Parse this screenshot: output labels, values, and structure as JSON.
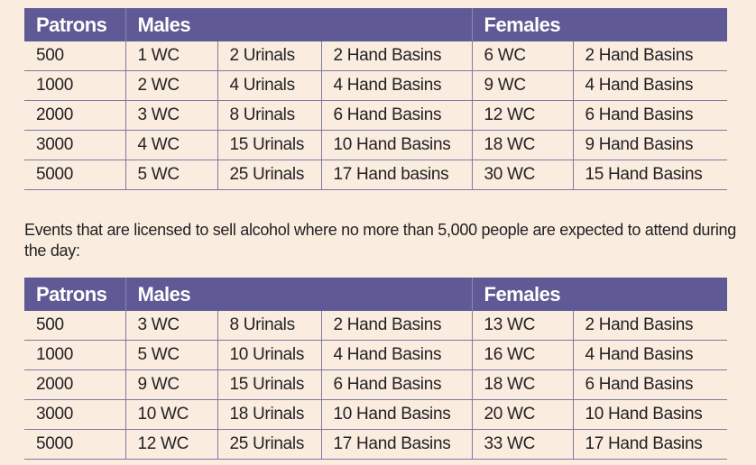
{
  "headers": {
    "patrons": "Patrons",
    "males": "Males",
    "females": "Females"
  },
  "table1": [
    [
      "500",
      "1 WC",
      "2 Urinals",
      "2 Hand Basins",
      "6 WC",
      "2 Hand Basins"
    ],
    [
      "1000",
      "2 WC",
      "4 Urinals",
      "4 Hand Basins",
      "9 WC",
      "4 Hand Basins"
    ],
    [
      "2000",
      "3 WC",
      "8 Urinals",
      "6 Hand Basins",
      "12 WC",
      "6 Hand Basins"
    ],
    [
      "3000",
      "4 WC",
      "15 Urinals",
      "10 Hand Basins",
      "18 WC",
      "9 Hand Basins"
    ],
    [
      "5000",
      "5 WC",
      "25 Urinals",
      "17 Hand basins",
      "30 WC",
      "15 Hand Basins"
    ]
  ],
  "paragraph": "Events that are licensed to sell alcohol where no more than 5,000 people are expected to attend during the day:",
  "table2": [
    [
      "500",
      "3 WC",
      "8 Urinals",
      "2 Hand Basins",
      "13 WC",
      "2 Hand Basins"
    ],
    [
      "1000",
      "5 WC",
      "10 Urinals",
      "4 Hand Basins",
      "16 WC",
      "4 Hand Basins"
    ],
    [
      "2000",
      "9 WC",
      "15 Urinals",
      "6 Hand Basins",
      "18 WC",
      "6 Hand Basins"
    ],
    [
      "3000",
      "10 WC",
      "18 Urinals",
      "10 Hand Basins",
      "20 WC",
      "10 Hand Basins"
    ],
    [
      "5000",
      "12 WC",
      "25 Urinals",
      "17 Hand Basins",
      "33 WC",
      "17 Hand Basins"
    ]
  ],
  "colors": {
    "header_bg": "#5f5a95",
    "page_bg": "#fbece0"
  }
}
